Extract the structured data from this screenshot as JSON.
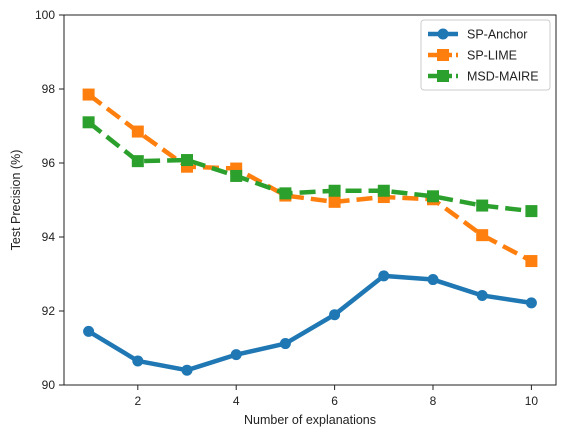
{
  "chart_data": {
    "type": "line",
    "xlabel": "Number of explanations",
    "ylabel": "Test Precision (%)",
    "xlim": [
      0.5,
      10.5
    ],
    "ylim": [
      90,
      100
    ],
    "xticks": [
      2,
      4,
      6,
      8,
      10
    ],
    "yticks": [
      90,
      92,
      94,
      96,
      98,
      100
    ],
    "grid": false,
    "legend_position": "top-right",
    "x": [
      1,
      2,
      3,
      4,
      5,
      6,
      7,
      8,
      9,
      10
    ],
    "series": [
      {
        "name": "SP-Anchor",
        "color": "#1f77b4",
        "line_style": "solid",
        "marker": "circle",
        "values": [
          91.45,
          90.65,
          90.4,
          90.82,
          91.12,
          91.9,
          92.95,
          92.85,
          92.42,
          92.22
        ]
      },
      {
        "name": "SP-LIME",
        "color": "#ff7f0e",
        "line_style": "dashed",
        "marker": "square",
        "values": [
          97.85,
          96.85,
          95.9,
          95.85,
          95.12,
          94.95,
          95.08,
          95.02,
          94.05,
          93.35
        ]
      },
      {
        "name": "MSD-MAIRE",
        "color": "#2ca02c",
        "line_style": "dashed",
        "marker": "square",
        "values": [
          97.1,
          96.05,
          96.08,
          95.65,
          95.18,
          95.25,
          95.25,
          95.1,
          94.85,
          94.7
        ]
      }
    ]
  }
}
